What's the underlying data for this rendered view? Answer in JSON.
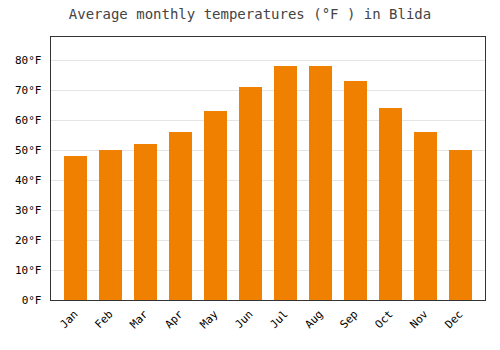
{
  "chart_data": {
    "type": "bar",
    "title": "Average monthly temperatures (°F ) in Blida",
    "categories": [
      "Jan",
      "Feb",
      "Mar",
      "Apr",
      "May",
      "Jun",
      "Jul",
      "Aug",
      "Sep",
      "Oct",
      "Nov",
      "Dec"
    ],
    "values": [
      48,
      50,
      52,
      56,
      63,
      71,
      78,
      78,
      73,
      64,
      56,
      50
    ],
    "color": "#F08000",
    "ylim": [
      0,
      88
    ],
    "yticks": [
      {
        "value": 0,
        "label": "0°F"
      },
      {
        "value": 10,
        "label": "10°F"
      },
      {
        "value": 20,
        "label": "20°F"
      },
      {
        "value": 30,
        "label": "30°F"
      },
      {
        "value": 40,
        "label": "40°F"
      },
      {
        "value": 50,
        "label": "50°F"
      },
      {
        "value": 60,
        "label": "60°F"
      },
      {
        "value": 70,
        "label": "70°F"
      },
      {
        "value": 80,
        "label": "80°F"
      }
    ],
    "grid": true
  }
}
